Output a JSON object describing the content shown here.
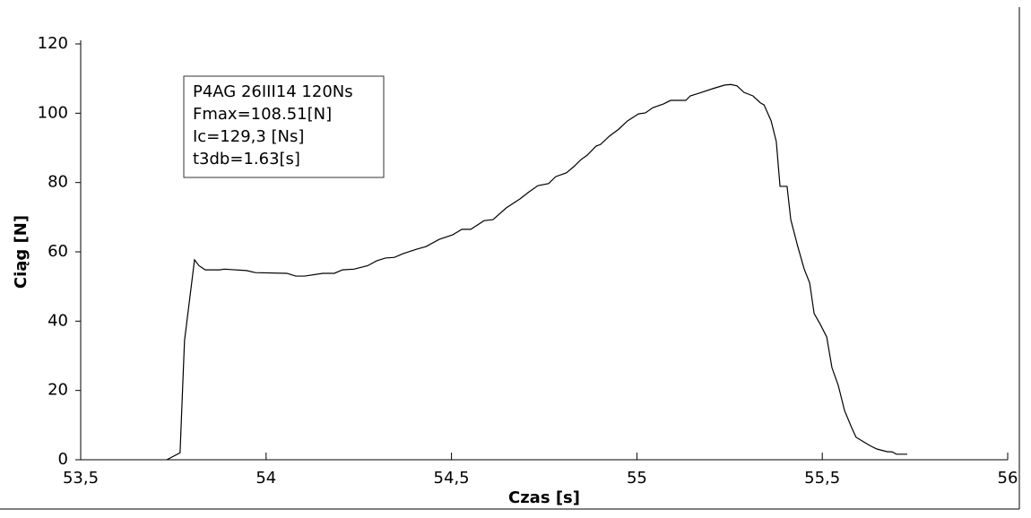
{
  "chart_data": {
    "type": "line",
    "xlabel": "Czas [s]",
    "ylabel": "Ciąg [N]",
    "annotation": [
      "P4AG 26III14 120Ns",
      "Fmax=108.51[N]",
      "Ic=129,3 [Ns]",
      "t3db=1.63[s]"
    ],
    "xlim": [
      53.5,
      56
    ],
    "ylim": [
      0,
      120
    ],
    "xticks": [
      {
        "value": 53.5,
        "label": "53,5"
      },
      54,
      {
        "value": 54.5,
        "label": "54,5"
      },
      55,
      {
        "value": 55.5,
        "label": "55,5"
      },
      56
    ],
    "yticks": [
      0,
      20,
      40,
      60,
      80,
      100,
      120
    ],
    "grid": false,
    "x": [
      53.732,
      53.768,
      53.78,
      53.807,
      53.819,
      53.836,
      53.875,
      53.887,
      53.947,
      53.971,
      54.056,
      54.08,
      54.104,
      54.153,
      54.184,
      54.206,
      54.237,
      54.274,
      54.298,
      54.322,
      54.346,
      54.37,
      54.407,
      54.431,
      54.467,
      54.503,
      54.528,
      54.552,
      54.588,
      54.612,
      54.648,
      54.685,
      54.709,
      54.733,
      54.762,
      54.781,
      54.81,
      54.83,
      54.849,
      54.866,
      54.89,
      54.902,
      54.926,
      54.951,
      54.975,
      55.004,
      55.023,
      55.043,
      55.072,
      55.091,
      55.132,
      55.144,
      55.168,
      55.205,
      55.236,
      55.253,
      55.27,
      55.289,
      55.313,
      55.333,
      55.343,
      55.362,
      55.376,
      55.386,
      55.405,
      55.415,
      55.434,
      55.451,
      55.466,
      55.478,
      55.495,
      55.512,
      55.526,
      55.543,
      55.56,
      55.579,
      55.591,
      55.608,
      55.628,
      55.647,
      55.676,
      55.688,
      55.7,
      55.729
    ],
    "series": [
      {
        "name": "P4AG 26III14 120Ns",
        "color": "#000000",
        "values": [
          0,
          2,
          34.4,
          57.7,
          56,
          54.8,
          54.8,
          55,
          54.6,
          54,
          53.8,
          53,
          53,
          53.8,
          53.8,
          54.8,
          55,
          56,
          57.4,
          58.2,
          58.4,
          59.5,
          60.8,
          61.5,
          63.6,
          64.9,
          66.5,
          66.5,
          69,
          69.3,
          72.7,
          75.3,
          77.3,
          79.1,
          79.7,
          81.7,
          82.8,
          84.6,
          86.6,
          87.9,
          90.5,
          91,
          93.4,
          95.4,
          97.8,
          99.8,
          100.1,
          101.6,
          102.7,
          103.7,
          103.7,
          105,
          105.8,
          107.1,
          108.1,
          108.3,
          107.9,
          106,
          105,
          103,
          102.4,
          97.8,
          91.8,
          78.9,
          78.9,
          69.3,
          61.5,
          55.1,
          51,
          42.2,
          39,
          35.4,
          26.6,
          21.5,
          14.2,
          9.3,
          6.5,
          5.4,
          4.1,
          3.1,
          2.3,
          2.3,
          1.6,
          1.6
        ]
      }
    ]
  }
}
